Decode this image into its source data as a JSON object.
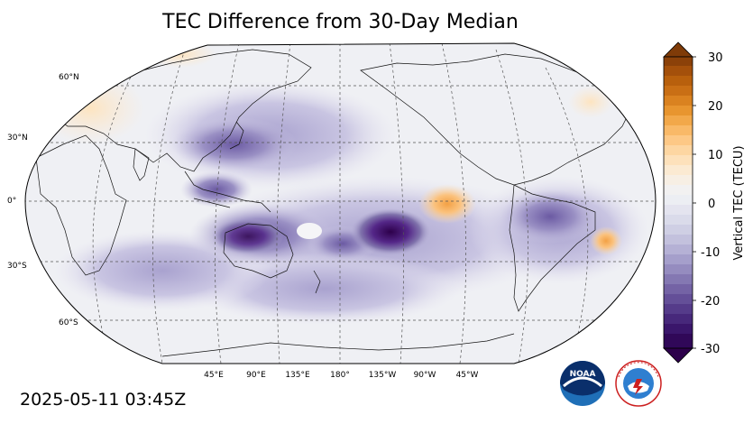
{
  "title": "TEC Difference from 30-Day Median",
  "timestamp": "2025-05-11 03:45Z",
  "map": {
    "projection": "robinson",
    "central_longitude": 180,
    "lat_labels": [
      "60°N",
      "30°N",
      "0°",
      "30°S",
      "60°S"
    ],
    "lon_labels": [
      "45°E",
      "90°E",
      "135°E",
      "180°",
      "135°W",
      "90°W",
      "45°W"
    ],
    "gridlines": true
  },
  "colorbar": {
    "label": "Vertical TEC (TECU)",
    "ticks": [
      "30",
      "20",
      "10",
      "0",
      "-10",
      "-20",
      "-30"
    ],
    "min": -30,
    "max": 30,
    "colormap": "PuOr_r",
    "extend": "both"
  },
  "logos": {
    "noaa": "NOAA",
    "nws": "NATIONAL WEATHER SERVICE"
  }
}
